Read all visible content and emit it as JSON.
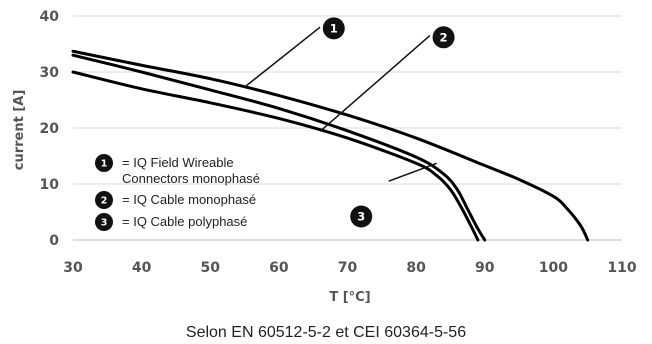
{
  "chart_data": {
    "type": "line",
    "xlabel": "T [°C]",
    "ylabel": "current [A]",
    "xlim": [
      30,
      110
    ],
    "ylim": [
      0,
      40
    ],
    "xticks": [
      30,
      40,
      50,
      60,
      70,
      80,
      90,
      100,
      110
    ],
    "yticks": [
      0,
      10,
      20,
      30,
      40
    ],
    "grid": "horizontal",
    "series": [
      {
        "marker": "1",
        "color": "#000000",
        "points": [
          [
            30,
            33.7
          ],
          [
            40,
            31.2
          ],
          [
            50,
            28.8
          ],
          [
            60,
            25.8
          ],
          [
            70,
            22.3
          ],
          [
            80,
            18.2
          ],
          [
            90,
            13.3
          ],
          [
            95,
            10.8
          ],
          [
            100,
            7.8
          ],
          [
            102,
            5.6
          ],
          [
            104,
            2.5
          ],
          [
            105,
            0
          ]
        ]
      },
      {
        "marker": "2",
        "color": "#000000",
        "points": [
          [
            30,
            33.0
          ],
          [
            40,
            30.0
          ],
          [
            50,
            26.8
          ],
          [
            60,
            23.5
          ],
          [
            70,
            19.5
          ],
          [
            80,
            14.8
          ],
          [
            84,
            11.8
          ],
          [
            86,
            9.0
          ],
          [
            87.5,
            5.5
          ],
          [
            89,
            2.0
          ],
          [
            90,
            0
          ]
        ]
      },
      {
        "marker": "3",
        "color": "#000000",
        "points": [
          [
            30,
            30.0
          ],
          [
            40,
            27.0
          ],
          [
            50,
            24.5
          ],
          [
            60,
            21.7
          ],
          [
            70,
            18.2
          ],
          [
            80,
            13.7
          ],
          [
            83,
            11.5
          ],
          [
            85,
            9.0
          ],
          [
            86.5,
            6.0
          ],
          [
            88,
            2.5
          ],
          [
            89,
            0
          ]
        ]
      }
    ],
    "markers": [
      {
        "label": "1",
        "line_from": [
          55,
          27.3
        ],
        "line_to": [
          66,
          38.0
        ],
        "at": [
          68,
          37.8
        ]
      },
      {
        "label": "2",
        "line_from": [
          66,
          19.4
        ],
        "line_to": [
          82,
          36.5
        ],
        "at": [
          84,
          36.2
        ]
      },
      {
        "label": "3",
        "line_from": [
          76,
          10.5
        ],
        "line_to": [
          83,
          13.7
        ],
        "at": [
          72,
          4.2
        ]
      }
    ],
    "legend": {
      "placement": "bottom-left",
      "entries": [
        {
          "marker": "1",
          "lines": [
            "= IQ Field Wireable",
            "Connectors monophasé"
          ]
        },
        {
          "marker": "2",
          "lines": [
            "= IQ Cable monophasé"
          ]
        },
        {
          "marker": "3",
          "lines": [
            "= IQ Cable polyphasé"
          ]
        }
      ]
    },
    "caption": "Selon EN 60512-5-2 et CEI 60364-5-56"
  }
}
